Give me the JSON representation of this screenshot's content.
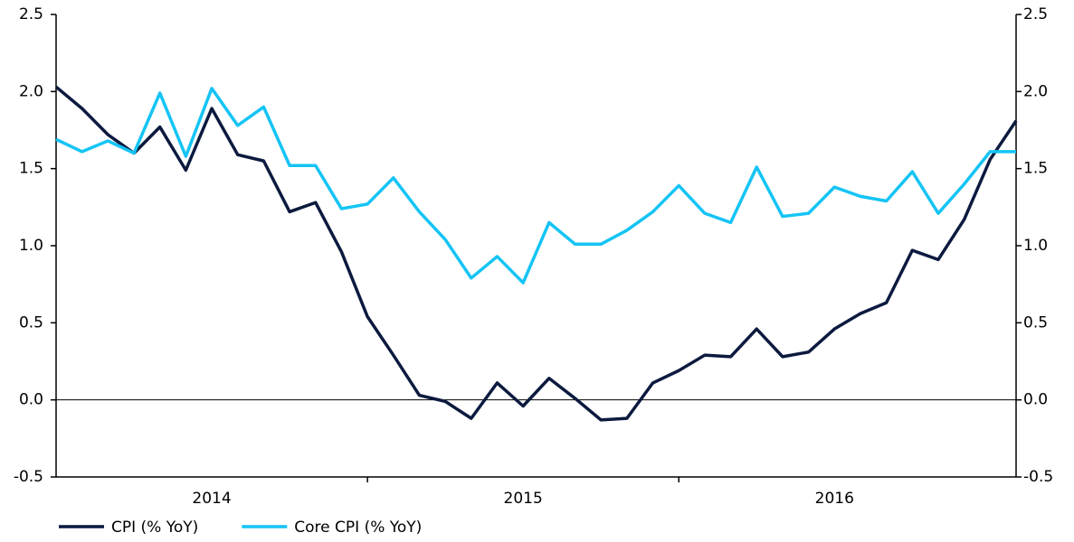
{
  "chart_data": {
    "type": "line",
    "categories": [
      null,
      null,
      null,
      null,
      null,
      null,
      null,
      null,
      null,
      null,
      null,
      null,
      null,
      null,
      null,
      null,
      null,
      null,
      null,
      null,
      null,
      null,
      null,
      null,
      null,
      null,
      null,
      null,
      null,
      null,
      null,
      null,
      null,
      null,
      null,
      null,
      null,
      null
    ],
    "x_labels": [
      "2014",
      "2015",
      "2016"
    ],
    "series": [
      {
        "name": "CPI (% YoY)",
        "color": "#0c1a3f",
        "values": [
          2.03,
          1.89,
          1.72,
          1.6,
          1.77,
          1.49,
          1.89,
          1.59,
          1.55,
          1.22,
          1.28,
          0.96,
          0.54,
          0.29,
          0.03,
          -0.01,
          -0.12,
          0.11,
          -0.04,
          0.14,
          0.01,
          -0.13,
          -0.12,
          0.11,
          0.19,
          0.29,
          0.28,
          0.46,
          0.28,
          0.31,
          0.46,
          0.56,
          0.63,
          0.97,
          0.91,
          1.17,
          1.56,
          1.81
        ]
      },
      {
        "name": "Core CPI (% YoY)",
        "color": "#14c4f5",
        "values": [
          1.69,
          1.61,
          1.68,
          1.6,
          1.99,
          1.58,
          2.02,
          1.78,
          1.9,
          1.52,
          1.52,
          1.24,
          1.27,
          1.44,
          1.22,
          1.04,
          0.79,
          0.93,
          0.76,
          1.15,
          1.01,
          1.01,
          1.1,
          1.22,
          1.39,
          1.21,
          1.15,
          1.51,
          1.19,
          1.21,
          1.38,
          1.32,
          1.29,
          1.48,
          1.21,
          1.4,
          1.61,
          1.61
        ]
      }
    ],
    "ylim": [
      -0.5,
      2.5
    ],
    "yticks": [
      {
        "value": -0.5,
        "label": "-0.5"
      },
      {
        "value": 0,
        "label": "0.0"
      },
      0.5,
      {
        "value": 1,
        "label": "1.0"
      },
      1.5,
      {
        "value": 2,
        "label": "2.0"
      },
      2.5
    ],
    "y2lim": [
      -0.5,
      2.5
    ],
    "y2ticks": [
      {
        "value": -0.5,
        "label": "-0.5"
      },
      {
        "value": 0,
        "label": "0.0"
      },
      0.5,
      {
        "value": 1,
        "label": "1.0"
      },
      1.5,
      {
        "value": 2,
        "label": "2.0"
      },
      2.5
    ],
    "legend": "bottom"
  }
}
